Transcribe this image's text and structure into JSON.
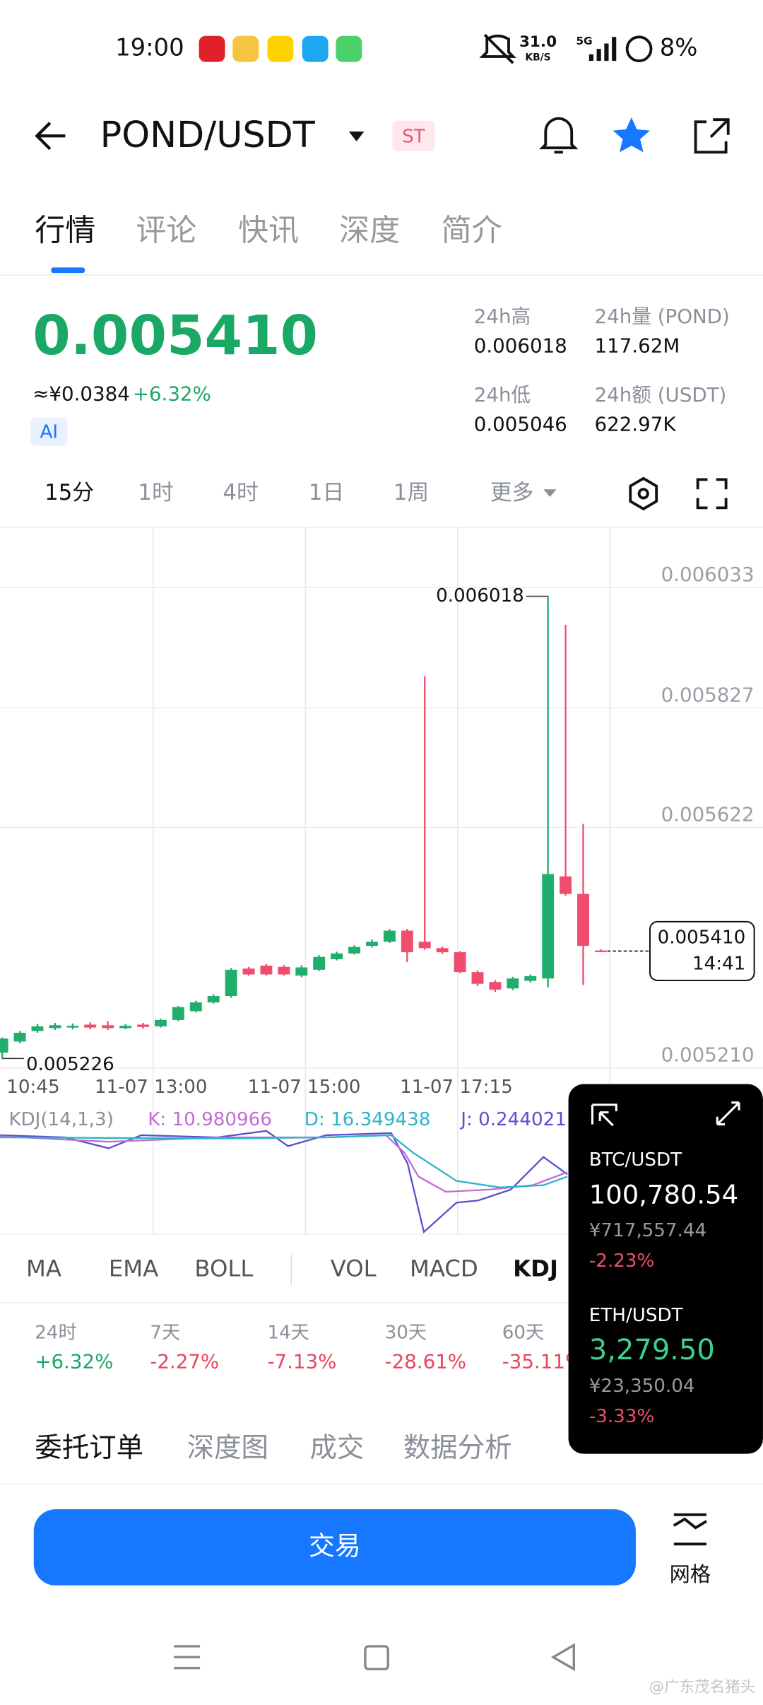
{
  "status_bar": {
    "time": "19:00",
    "speed": "31.0",
    "speed_unit": "KB/S",
    "network": "5G",
    "battery": "8%"
  },
  "header": {
    "title": "POND/USDT",
    "tag": "ST"
  },
  "tabs": [
    "行情",
    "评论",
    "快讯",
    "深度",
    "简介"
  ],
  "price": {
    "last": "0.005410",
    "cny": "≈¥0.0384",
    "change": "+6.32%",
    "ai": "AI"
  },
  "stats": [
    {
      "label": "24h高",
      "value": "0.006018"
    },
    {
      "label": "24h量 (POND)",
      "value": "117.62M"
    },
    {
      "label": "24h低",
      "value": "0.005046"
    },
    {
      "label": "24h额 (USDT)",
      "value": "622.97K"
    }
  ],
  "intervals": [
    "15分",
    "1时",
    "4时",
    "1日",
    "1周",
    "更多"
  ],
  "chart_data": {
    "type": "candlestick",
    "up_color": "#1fae6c",
    "down_color": "#ef4d6b",
    "open": [
      0.005236,
      0.005255,
      0.005273,
      0.005278,
      0.005279,
      0.005284,
      0.005283,
      0.005278,
      0.005284,
      0.005281,
      0.005292,
      0.005307,
      0.005322,
      0.005333,
      0.00538,
      0.005385,
      0.005383,
      0.005368,
      0.005378,
      0.005396,
      0.005406,
      0.005419,
      0.005426,
      0.005445,
      0.005426,
      0.005415,
      0.005408,
      0.005374,
      0.005357,
      0.005346,
      0.005359,
      0.005363,
      0.005538,
      0.005508,
      0.005411
    ],
    "high": [
      0.005262,
      0.005273,
      0.005285,
      0.005287,
      0.005286,
      0.005288,
      0.00529,
      0.005285,
      0.005287,
      0.005294,
      0.005316,
      0.005325,
      0.005336,
      0.005381,
      0.005383,
      0.005388,
      0.005386,
      0.005386,
      0.005403,
      0.005409,
      0.00542,
      0.00543,
      0.005448,
      0.005448,
      0.005881,
      0.005418,
      0.00541,
      0.005377,
      0.00536,
      0.005366,
      0.00537,
      0.006018,
      0.005969,
      0.005628,
      0.005413
    ],
    "low": [
      0.005226,
      0.005252,
      0.00527,
      0.005275,
      0.005276,
      0.005276,
      0.005275,
      0.005276,
      0.005277,
      0.005279,
      0.00529,
      0.005305,
      0.00532,
      0.00533,
      0.005368,
      0.005368,
      0.005368,
      0.005365,
      0.005376,
      0.005394,
      0.005404,
      0.005416,
      0.005424,
      0.005391,
      0.005412,
      0.005405,
      0.005372,
      0.00535,
      0.00534,
      0.005343,
      0.005356,
      0.005348,
      0.005505,
      0.005352,
      0.005408
    ],
    "close": [
      0.00526,
      0.00527,
      0.005281,
      0.005283,
      0.005282,
      0.005279,
      0.005278,
      0.005282,
      0.00528,
      0.005292,
      0.005314,
      0.005322,
      0.005333,
      0.005378,
      0.00537,
      0.00537,
      0.00537,
      0.005382,
      0.0054,
      0.005406,
      0.005417,
      0.005426,
      0.005445,
      0.005408,
      0.005415,
      0.005408,
      0.005374,
      0.005354,
      0.005344,
      0.005363,
      0.005367,
      0.005542,
      0.005508,
      0.005419,
      0.00541
    ],
    "ylim": [
      0.00521,
      0.006136
    ],
    "yticks": [
      0.006033,
      0.005827,
      0.005622,
      {
        "value": 0.00521,
        "label": "0.005210"
      }
    ],
    "grid": true,
    "max_annotation": 0.006018,
    "min_annotation": 0.005226,
    "current_price": {
      "value": 0.00541,
      "label": "0.005410",
      "time": "14:41"
    },
    "time_labels": [
      "10:45",
      "11-07 13:00",
      "11-07 15:00",
      "11-07 17:15"
    ]
  },
  "kdj": {
    "title": "KDJ(14,1,3)",
    "k": "K: 10.980966",
    "d": "D: 16.349438",
    "j": "J: 0.244021"
  },
  "indicators": [
    "MA",
    "EMA",
    "BOLL",
    "VOL",
    "MACD",
    "KDJ"
  ],
  "performance": [
    {
      "label": "24时",
      "value": "+6.32%"
    },
    {
      "label": "7天",
      "value": "-2.27%"
    },
    {
      "label": "14天",
      "value": "-7.13%"
    },
    {
      "label": "30天",
      "value": "-28.61%"
    },
    {
      "label": "60天",
      "value": "-35.11%"
    }
  ],
  "order_tabs": [
    "委托订单",
    "深度图",
    "成交",
    "数据分析"
  ],
  "trade_button": "交易",
  "grid_button": "网格",
  "popup": [
    {
      "pair": "BTC/USDT",
      "price": "100,780.54",
      "cny": "¥717,557.44",
      "change": "-2.23%"
    },
    {
      "pair": "ETH/USDT",
      "price": "3,279.50",
      "cny": "¥23,350.04",
      "change": "-3.33%"
    }
  ],
  "watermark": "@广东茂名猪头"
}
